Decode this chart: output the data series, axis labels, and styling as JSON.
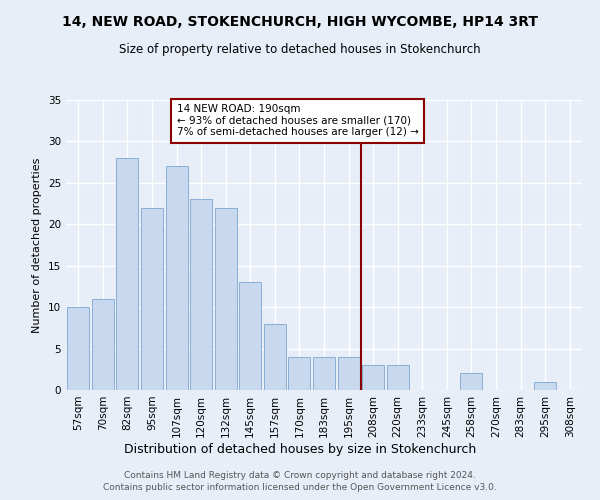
{
  "title": "14, NEW ROAD, STOKENCHURCH, HIGH WYCOMBE, HP14 3RT",
  "subtitle": "Size of property relative to detached houses in Stokenchurch",
  "xlabel": "Distribution of detached houses by size in Stokenchurch",
  "ylabel": "Number of detached properties",
  "footer1": "Contains HM Land Registry data © Crown copyright and database right 2024.",
  "footer2": "Contains public sector information licensed under the Open Government Licence v3.0.",
  "bar_labels": [
    "57sqm",
    "70sqm",
    "82sqm",
    "95sqm",
    "107sqm",
    "120sqm",
    "132sqm",
    "145sqm",
    "157sqm",
    "170sqm",
    "183sqm",
    "195sqm",
    "208sqm",
    "220sqm",
    "233sqm",
    "245sqm",
    "258sqm",
    "270sqm",
    "283sqm",
    "295sqm",
    "308sqm"
  ],
  "bar_values": [
    10,
    11,
    28,
    22,
    27,
    23,
    22,
    13,
    8,
    4,
    4,
    4,
    3,
    3,
    0,
    0,
    2,
    0,
    0,
    1,
    0
  ],
  "bar_color": "#c8d8ee",
  "bar_edge_color": "#8aafd4",
  "vline_x_label": "195sqm",
  "vline_color": "#8B0000",
  "annotation_title": "14 NEW ROAD: 190sqm",
  "annotation_line1": "← 93% of detached houses are smaller (170)",
  "annotation_line2": "7% of semi-detached houses are larger (12) →",
  "annotation_box_color": "#8B0000",
  "annotation_bg_color": "#ffffff",
  "ylim": [
    0,
    35
  ],
  "yticks": [
    0,
    5,
    10,
    15,
    20,
    25,
    30,
    35
  ],
  "bg_color": "#e8eef8",
  "grid_color": "#ffffff",
  "title_fontsize": 10,
  "subtitle_fontsize": 8.5,
  "ylabel_fontsize": 8,
  "xlabel_fontsize": 9,
  "tick_fontsize": 7.5,
  "footer_fontsize": 6.5
}
